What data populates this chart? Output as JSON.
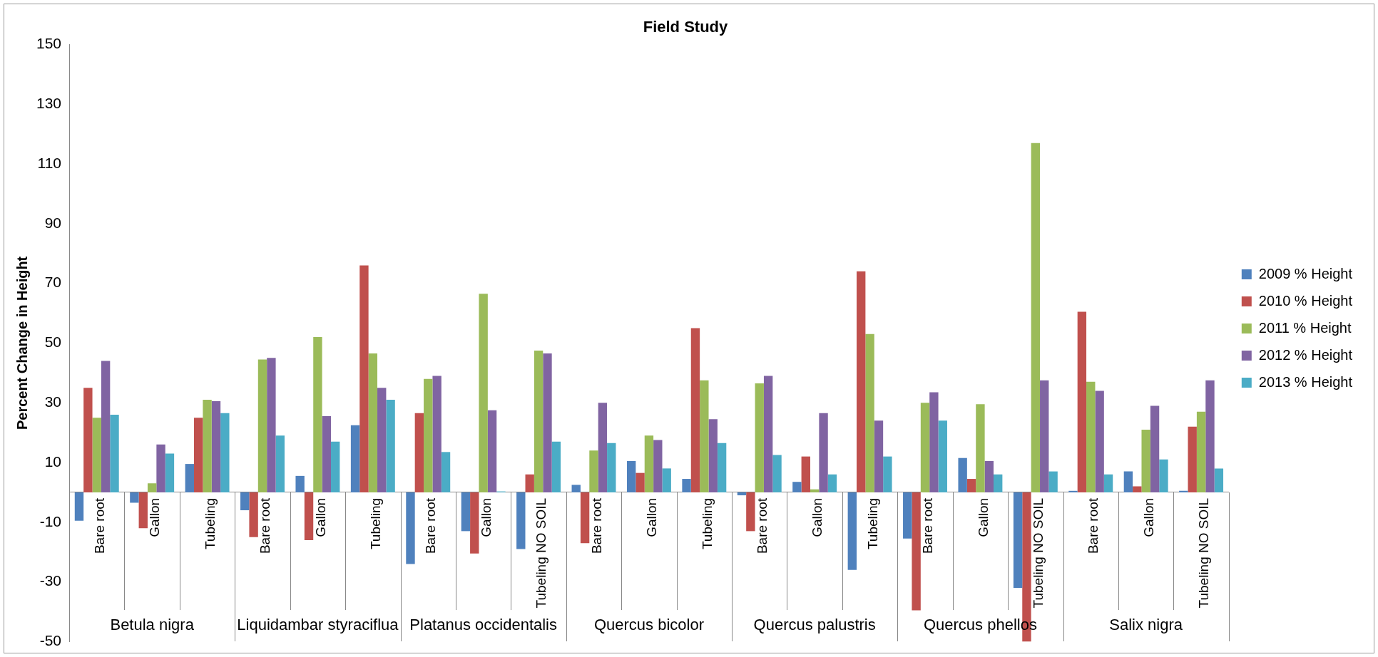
{
  "chart_data": {
    "type": "bar",
    "title": "Field Study",
    "ylabel": "Percent Change in Height",
    "categories": [
      "Bare root",
      "Gallon",
      "Tubeling",
      "Bare root",
      "Gallon",
      "Tubeling",
      "Bare root",
      "Gallon",
      "Tubeling NO SOIL",
      "Bare root",
      "Gallon",
      "Tubeling",
      "Bare root",
      "Gallon",
      "Tubeling",
      "Bare root",
      "Gallon",
      "Tubeling NO SOIL",
      "Bare root",
      "Gallon",
      "Tubeling NO SOIL"
    ],
    "annotations": [
      "Betula nigra",
      "Liquidambar styraciflua",
      "Platanus occidentalis",
      "Quercus bicolor",
      "Quercus palustris",
      "Quercus phellos",
      "Salix nigra"
    ],
    "series": [
      {
        "name": "2009 % Height",
        "color": "#4f81bd",
        "values": [
          -9.5,
          -3.5,
          9.5,
          -6,
          5.5,
          22.5,
          -24,
          -13,
          -19,
          2.5,
          10.5,
          4.5,
          -1,
          3.5,
          -26,
          -15.5,
          11.5,
          -32,
          0.5,
          7,
          0.5
        ]
      },
      {
        "name": "2010 % Height",
        "color": "#c0504d",
        "values": [
          35,
          -12,
          25,
          -15,
          -16,
          76,
          26.5,
          -20.5,
          6,
          -17,
          6.5,
          55,
          -13,
          12,
          74,
          -39.5,
          4.5,
          -50,
          60.5,
          2,
          22
        ]
      },
      {
        "name": "2011 % Height",
        "color": "#9bbb59",
        "values": [
          25,
          3,
          31,
          44.5,
          52,
          46.5,
          38,
          66.5,
          47.5,
          14,
          19,
          37.5,
          36.5,
          1,
          53,
          30,
          29.5,
          117,
          37,
          21,
          27
        ]
      },
      {
        "name": "2012 % Height",
        "color": "#8064a2",
        "values": [
          44,
          16,
          30.5,
          45,
          25.5,
          35,
          39,
          27.5,
          46.5,
          30,
          17.5,
          24.5,
          39,
          26.5,
          24,
          33.5,
          10.5,
          37.5,
          34,
          29,
          37.5
        ]
      },
      {
        "name": "2013 % Height",
        "color": "#4bacc6",
        "values": [
          26,
          13,
          26.5,
          19,
          17,
          31,
          13.5,
          0.3,
          17,
          16.5,
          8,
          16.5,
          12.5,
          6,
          12,
          24,
          6,
          7,
          6,
          11,
          8
        ]
      }
    ],
    "ylim": [
      -50,
      150
    ],
    "yticks": [
      -50,
      -30,
      -10,
      10,
      30,
      50,
      70,
      90,
      110,
      130,
      150
    ],
    "grid": false,
    "legend": "right"
  }
}
